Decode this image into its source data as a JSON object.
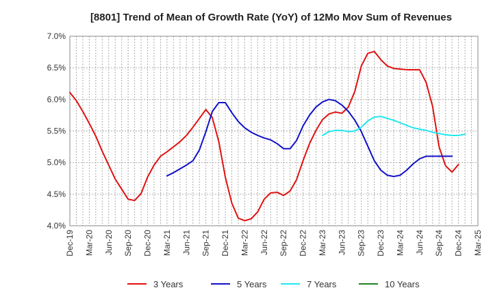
{
  "chart_data": {
    "type": "line",
    "title": "[8801]  Trend of Mean of Growth Rate (YoY) of 12Mo Mov Sum of Revenues",
    "xlabel": "",
    "ylabel": "",
    "ylim": [
      4.0,
      7.0
    ],
    "y_ticks": [
      "4.0%",
      "4.5%",
      "5.0%",
      "5.5%",
      "6.0%",
      "6.5%",
      "7.0%"
    ],
    "y_tick_values": [
      4.0,
      4.5,
      5.0,
      5.5,
      6.0,
      6.5,
      7.0
    ],
    "x_tick_labels": [
      "Dec-19",
      "Mar-20",
      "Jun-20",
      "Sep-20",
      "Dec-20",
      "Mar-21",
      "Jun-21",
      "Sep-21",
      "Dec-21",
      "Mar-22",
      "Jun-22",
      "Sep-22",
      "Dec-22",
      "Mar-23",
      "Jun-23",
      "Sep-23",
      "Dec-23",
      "Mar-24",
      "Jun-24",
      "Sep-24",
      "Dec-24",
      "Mar-25"
    ],
    "x_start": "Dec-19",
    "grid": true,
    "legend_position": "bottom",
    "series": [
      {
        "name": "3 Years",
        "color": "#e01010",
        "start_index": 0,
        "values": [
          6.11,
          5.98,
          5.81,
          5.62,
          5.42,
          5.18,
          4.96,
          4.74,
          4.58,
          4.42,
          4.4,
          4.51,
          4.77,
          4.96,
          5.1,
          5.17,
          5.25,
          5.33,
          5.43,
          5.56,
          5.7,
          5.84,
          5.71,
          5.33,
          4.77,
          4.36,
          4.12,
          4.08,
          4.11,
          4.22,
          4.42,
          4.52,
          4.53,
          4.48,
          4.55,
          4.73,
          5.03,
          5.3,
          5.51,
          5.68,
          5.77,
          5.8,
          5.78,
          5.88,
          6.13,
          6.53,
          6.73,
          6.76,
          6.63,
          6.53,
          6.49,
          6.48,
          6.47,
          6.47,
          6.47,
          6.27,
          5.89,
          5.25,
          4.95,
          4.85,
          4.97
        ]
      },
      {
        "name": "5 Years",
        "color": "#1010c8",
        "start_index": 15,
        "values": [
          4.79,
          4.84,
          4.9,
          4.96,
          5.03,
          5.2,
          5.49,
          5.81,
          5.95,
          5.95,
          5.79,
          5.65,
          5.55,
          5.48,
          5.43,
          5.39,
          5.36,
          5.3,
          5.22,
          5.22,
          5.35,
          5.58,
          5.75,
          5.88,
          5.96,
          6.0,
          5.98,
          5.91,
          5.81,
          5.67,
          5.49,
          5.26,
          5.03,
          4.88,
          4.8,
          4.78,
          4.8,
          4.88,
          4.98,
          5.06,
          5.1,
          5.1,
          5.1,
          5.1,
          5.1
        ]
      },
      {
        "name": "7 Years",
        "color": "#20e8f0",
        "start_index": 39,
        "values": [
          5.43,
          5.49,
          5.51,
          5.51,
          5.49,
          5.5,
          5.56,
          5.66,
          5.72,
          5.73,
          5.7,
          5.67,
          5.63,
          5.59,
          5.55,
          5.53,
          5.51,
          5.48,
          5.46,
          5.44,
          5.43,
          5.43,
          5.45
        ]
      },
      {
        "name": "10 Years",
        "color": "#208020",
        "start_index": 0,
        "values": []
      }
    ]
  }
}
